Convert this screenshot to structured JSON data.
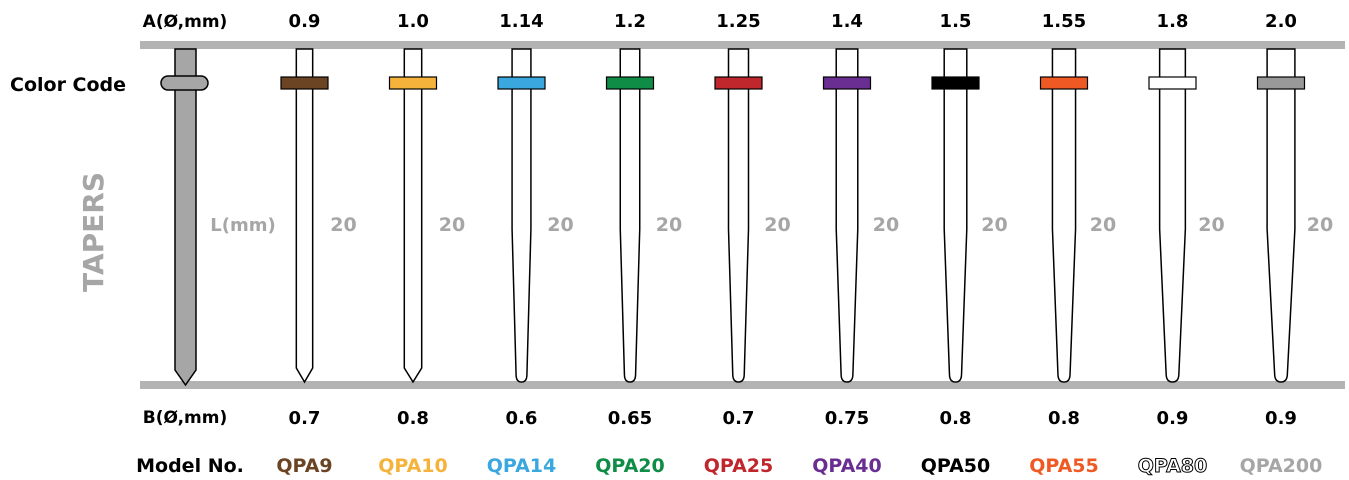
{
  "labels": {
    "a_header": "A(Ø,mm)",
    "color_code": "Color Code",
    "tapers": "TAPERS",
    "l_mm": "L(mm)",
    "b_header": "B(Ø,mm)",
    "model_header": "Model No."
  },
  "colors": {
    "rail": "#b3b3b3",
    "reference_rod": "#a6a6a6",
    "label_gray": "#a6a6a6",
    "text": "#000000"
  },
  "tips": [
    {
      "a": "0.9",
      "b": "0.7",
      "length": "20",
      "model": "QPA9",
      "band_color": "#6b4423",
      "model_color": "#6b4423",
      "model_outline": false
    },
    {
      "a": "1.0",
      "b": "0.8",
      "length": "20",
      "model": "QPA10",
      "band_color": "#f6b33c",
      "model_color": "#f6b33c",
      "model_outline": false
    },
    {
      "a": "1.14",
      "b": "0.6",
      "length": "20",
      "model": "QPA14",
      "band_color": "#3aa8df",
      "model_color": "#3aa8df",
      "model_outline": false
    },
    {
      "a": "1.2",
      "b": "0.65",
      "length": "20",
      "model": "QPA20",
      "band_color": "#0f8c46",
      "model_color": "#0f8c46",
      "model_outline": false
    },
    {
      "a": "1.25",
      "b": "0.7",
      "length": "20",
      "model": "QPA25",
      "band_color": "#c0272d",
      "model_color": "#c0272d",
      "model_outline": false
    },
    {
      "a": "1.4",
      "b": "0.75",
      "length": "20",
      "model": "QPA40",
      "band_color": "#6a2d91",
      "model_color": "#6a2d91",
      "model_outline": false
    },
    {
      "a": "1.5",
      "b": "0.8",
      "length": "20",
      "model": "QPA50",
      "band_color": "#000000",
      "model_color": "#000000",
      "model_outline": false
    },
    {
      "a": "1.55",
      "b": "0.8",
      "length": "20",
      "model": "QPA55",
      "band_color": "#ef5a24",
      "model_color": "#ef5a24",
      "model_outline": false
    },
    {
      "a": "1.8",
      "b": "0.9",
      "length": "20",
      "model": "QPA80",
      "band_color": "#ffffff",
      "model_color": "#ffffff",
      "model_outline": true
    },
    {
      "a": "2.0",
      "b": "0.9",
      "length": "20",
      "model": "QPA200",
      "band_color": "#999999",
      "model_color": "#a6a6a6",
      "model_outline": false
    }
  ]
}
